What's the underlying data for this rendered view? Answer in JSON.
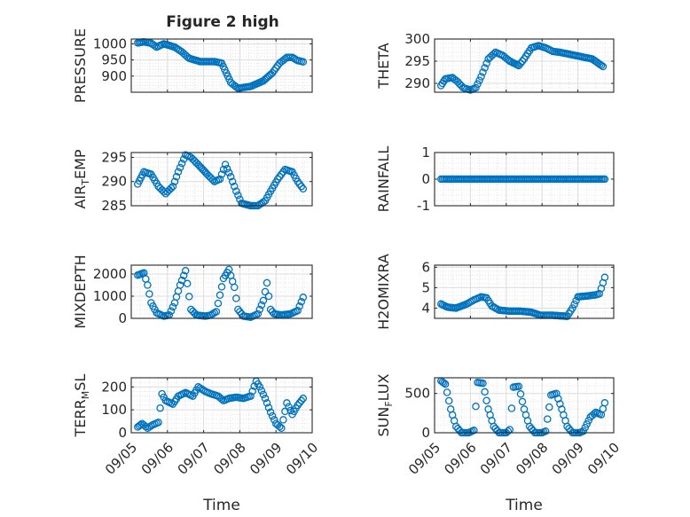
{
  "figure_title": "Figure 2 high",
  "shared_x": {
    "xlabel": "Time",
    "tick_labels": [
      "09/05",
      "09/06",
      "09/07",
      "09/08",
      "09/09",
      "09/10"
    ],
    "tick_days": [
      0,
      1,
      2,
      3,
      4,
      5
    ],
    "xlim_days": [
      0,
      5
    ]
  },
  "colors": {
    "marker": "#0072BD",
    "grid": "#dcdcdc",
    "axis": "#262626",
    "box": "#ffffff"
  },
  "chart_data": [
    {
      "id": "pressure",
      "type": "scatter",
      "ylabel": "PRESSURE",
      "ylabel_sub": "",
      "ylim": [
        850,
        1015
      ],
      "yticks": [
        900,
        950,
        1000
      ],
      "ytick_labels": [
        "900",
        "950",
        "1000"
      ],
      "keys": [
        [
          0.18,
          1003
        ],
        [
          0.35,
          1006
        ],
        [
          0.55,
          1002
        ],
        [
          0.7,
          990
        ],
        [
          0.9,
          1000
        ],
        [
          1.2,
          990
        ],
        [
          1.4,
          975
        ],
        [
          1.6,
          955
        ],
        [
          1.9,
          945
        ],
        [
          2.3,
          945
        ],
        [
          2.5,
          940
        ],
        [
          2.75,
          880
        ],
        [
          2.95,
          862
        ],
        [
          3.3,
          868
        ],
        [
          3.65,
          885
        ],
        [
          3.9,
          910
        ],
        [
          4.1,
          940
        ],
        [
          4.3,
          958
        ],
        [
          4.45,
          958
        ],
        [
          4.6,
          948
        ],
        [
          4.75,
          944
        ]
      ]
    },
    {
      "id": "theta",
      "type": "scatter",
      "ylabel": "THETA",
      "ylabel_sub": "",
      "ylim": [
        288,
        300
      ],
      "yticks": [
        290,
        295,
        300
      ],
      "ytick_labels": [
        "290",
        "295",
        "300"
      ],
      "keys": [
        [
          0.18,
          289.5
        ],
        [
          0.3,
          291
        ],
        [
          0.5,
          291.3
        ],
        [
          0.65,
          290.3
        ],
        [
          0.8,
          289
        ],
        [
          1.0,
          288.5
        ],
        [
          1.15,
          289
        ],
        [
          1.3,
          291.5
        ],
        [
          1.5,
          295.5
        ],
        [
          1.7,
          297
        ],
        [
          1.9,
          296.3
        ],
        [
          2.1,
          295
        ],
        [
          2.35,
          294
        ],
        [
          2.5,
          295.5
        ],
        [
          2.7,
          298
        ],
        [
          2.9,
          298.5
        ],
        [
          3.1,
          298
        ],
        [
          3.3,
          297.2
        ],
        [
          3.5,
          297
        ],
        [
          3.8,
          296.5
        ],
        [
          4.1,
          296
        ],
        [
          4.4,
          295.5
        ],
        [
          4.7,
          293.8
        ]
      ]
    },
    {
      "id": "air_temp",
      "type": "scatter",
      "ylabel": "AIR",
      "ylabel_sub": "T",
      "ylabel_suffix": "EMP",
      "ylim": [
        285,
        296
      ],
      "yticks": [
        285,
        290,
        295
      ],
      "ytick_labels": [
        "285",
        "290",
        "295"
      ],
      "keys": [
        [
          0.18,
          289.5
        ],
        [
          0.35,
          292
        ],
        [
          0.55,
          291.5
        ],
        [
          0.75,
          289
        ],
        [
          0.95,
          287.5
        ],
        [
          1.15,
          289
        ],
        [
          1.3,
          292
        ],
        [
          1.5,
          295.5
        ],
        [
          1.65,
          295
        ],
        [
          1.85,
          293.5
        ],
        [
          2.1,
          291.5
        ],
        [
          2.3,
          290
        ],
        [
          2.45,
          290.5
        ],
        [
          2.6,
          293.5
        ],
        [
          2.75,
          291
        ],
        [
          2.9,
          288
        ],
        [
          3.05,
          285.5
        ],
        [
          3.3,
          285
        ],
        [
          3.5,
          285
        ],
        [
          3.7,
          286
        ],
        [
          3.85,
          288
        ],
        [
          4.05,
          290.5
        ],
        [
          4.25,
          292.5
        ],
        [
          4.45,
          292
        ],
        [
          4.6,
          290
        ],
        [
          4.75,
          288.5
        ]
      ]
    },
    {
      "id": "rainfall",
      "type": "scatter",
      "ylabel": "RAINFALL",
      "ylabel_sub": "",
      "ylim": [
        -1,
        1
      ],
      "yticks": [
        -1,
        0,
        1
      ],
      "ytick_labels": [
        "-1",
        "0",
        "1"
      ],
      "keys": [
        [
          0.18,
          0
        ],
        [
          4.75,
          0
        ]
      ]
    },
    {
      "id": "mixdepth",
      "type": "scatter",
      "ylabel": "MIXDEPTH",
      "ylabel_sub": "",
      "ylim": [
        0,
        2400
      ],
      "yticks": [
        0,
        1000,
        2000
      ],
      "ytick_labels": [
        "0",
        "1000",
        "2000"
      ],
      "keys": [
        [
          0.18,
          1950
        ],
        [
          0.35,
          2050
        ],
        [
          0.45,
          1500
        ],
        [
          0.55,
          700
        ],
        [
          0.7,
          250
        ],
        [
          0.9,
          100
        ],
        [
          1.05,
          150
        ],
        [
          1.2,
          700
        ],
        [
          1.35,
          1500
        ],
        [
          1.5,
          2150
        ],
        [
          1.65,
          400
        ],
        [
          1.8,
          150
        ],
        [
          2.05,
          100
        ],
        [
          2.2,
          150
        ],
        [
          2.35,
          300
        ],
        [
          2.55,
          1800
        ],
        [
          2.7,
          2200
        ],
        [
          2.85,
          1400
        ],
        [
          2.95,
          400
        ],
        [
          3.1,
          100
        ],
        [
          3.3,
          50
        ],
        [
          3.5,
          200
        ],
        [
          3.65,
          800
        ],
        [
          3.75,
          1600
        ],
        [
          3.85,
          400
        ],
        [
          3.95,
          200
        ],
        [
          4.15,
          150
        ],
        [
          4.4,
          200
        ],
        [
          4.6,
          350
        ],
        [
          4.75,
          950
        ]
      ]
    },
    {
      "id": "h2omixra",
      "type": "scatter",
      "ylabel": "H2OMIXRA",
      "ylabel_sub": "",
      "ylim": [
        3.5,
        6.1
      ],
      "yticks": [
        4,
        5,
        6
      ],
      "ytick_labels": [
        "4",
        "5",
        "6"
      ],
      "keys": [
        [
          0.18,
          4.2
        ],
        [
          0.35,
          4.05
        ],
        [
          0.6,
          4.0
        ],
        [
          0.9,
          4.2
        ],
        [
          1.1,
          4.4
        ],
        [
          1.3,
          4.55
        ],
        [
          1.45,
          4.5
        ],
        [
          1.6,
          4.1
        ],
        [
          1.8,
          3.9
        ],
        [
          2.1,
          3.85
        ],
        [
          2.4,
          3.85
        ],
        [
          2.7,
          3.8
        ],
        [
          2.95,
          3.65
        ],
        [
          3.3,
          3.65
        ],
        [
          3.7,
          3.6
        ],
        [
          3.85,
          4.0
        ],
        [
          4.0,
          4.55
        ],
        [
          4.3,
          4.6
        ],
        [
          4.5,
          4.65
        ],
        [
          4.6,
          4.7
        ],
        [
          4.75,
          5.5
        ]
      ]
    },
    {
      "id": "terr_msl",
      "type": "scatter",
      "ylabel": "TERR",
      "ylabel_sub": "M",
      "ylabel_suffix": "SL",
      "ylim": [
        0,
        240
      ],
      "yticks": [
        0,
        100,
        200
      ],
      "ytick_labels": [
        "0",
        "100",
        "200"
      ],
      "keys": [
        [
          0.18,
          25
        ],
        [
          0.3,
          40
        ],
        [
          0.45,
          20
        ],
        [
          0.6,
          35
        ],
        [
          0.75,
          45
        ],
        [
          0.85,
          170
        ],
        [
          0.95,
          140
        ],
        [
          1.15,
          125
        ],
        [
          1.3,
          160
        ],
        [
          1.5,
          175
        ],
        [
          1.7,
          160
        ],
        [
          1.85,
          200
        ],
        [
          2.05,
          180
        ],
        [
          2.2,
          170
        ],
        [
          2.4,
          160
        ],
        [
          2.55,
          140
        ],
        [
          2.7,
          150
        ],
        [
          2.9,
          155
        ],
        [
          3.1,
          150
        ],
        [
          3.3,
          160
        ],
        [
          3.45,
          225
        ],
        [
          3.55,
          200
        ],
        [
          3.7,
          150
        ],
        [
          3.85,
          90
        ],
        [
          4.0,
          40
        ],
        [
          4.15,
          20
        ],
        [
          4.3,
          130
        ],
        [
          4.45,
          80
        ],
        [
          4.6,
          120
        ],
        [
          4.75,
          150
        ]
      ]
    },
    {
      "id": "sun_flux",
      "type": "scatter",
      "ylabel": "SUN",
      "ylabel_sub": "F",
      "ylabel_suffix": "LUX",
      "ylim": [
        0,
        700
      ],
      "yticks": [
        0,
        500
      ],
      "ytick_labels": [
        "0",
        "500"
      ],
      "keys": [
        [
          0.18,
          660
        ],
        [
          0.3,
          620
        ],
        [
          0.45,
          300
        ],
        [
          0.6,
          80
        ],
        [
          0.75,
          0
        ],
        [
          0.95,
          0
        ],
        [
          1.1,
          30
        ],
        [
          1.2,
          640
        ],
        [
          1.35,
          630
        ],
        [
          1.5,
          300
        ],
        [
          1.65,
          80
        ],
        [
          1.8,
          0
        ],
        [
          2.0,
          0
        ],
        [
          2.1,
          40
        ],
        [
          2.2,
          580
        ],
        [
          2.35,
          590
        ],
        [
          2.5,
          300
        ],
        [
          2.65,
          80
        ],
        [
          2.8,
          0
        ],
        [
          3.0,
          0
        ],
        [
          3.1,
          20
        ],
        [
          3.25,
          480
        ],
        [
          3.4,
          500
        ],
        [
          3.55,
          300
        ],
        [
          3.7,
          80
        ],
        [
          3.85,
          0
        ],
        [
          4.05,
          0
        ],
        [
          4.15,
          20
        ],
        [
          4.35,
          200
        ],
        [
          4.5,
          260
        ],
        [
          4.65,
          230
        ],
        [
          4.75,
          380
        ]
      ]
    }
  ]
}
